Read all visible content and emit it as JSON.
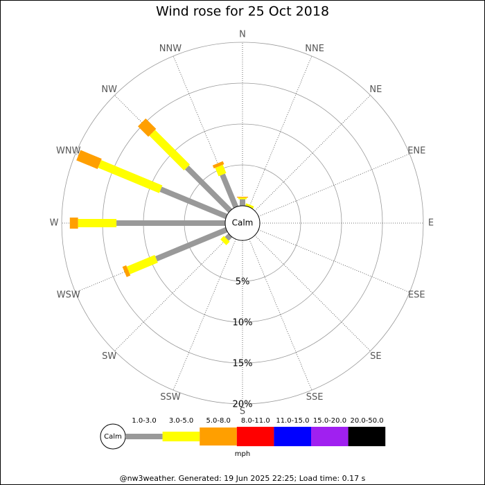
{
  "chart_data": {
    "type": "wind_rose",
    "title": "Wind rose for 25 Oct 2018",
    "directions": [
      "N",
      "NNE",
      "NE",
      "ENE",
      "E",
      "ESE",
      "SE",
      "SSE",
      "S",
      "SSW",
      "SW",
      "WSW",
      "W",
      "WNW",
      "NW",
      "NNW"
    ],
    "series": [
      {
        "name": "1.0-3.0",
        "color": "#999999",
        "values": [
          0.8,
          0,
          0,
          0,
          0,
          0,
          0,
          0,
          0,
          0,
          0.6,
          9.3,
          13.3,
          8.7,
          7.5,
          4.3
        ]
      },
      {
        "name": "3.0-5.0",
        "color": "#ffff00",
        "values": [
          0.2,
          0.3,
          0,
          0,
          0,
          0,
          0,
          0,
          0,
          0,
          0.6,
          3.7,
          4.7,
          8.1,
          6.0,
          1.1
        ]
      },
      {
        "name": "5.0-8.0",
        "color": "#ff9f00",
        "values": [
          0.1,
          0,
          0,
          0,
          0,
          0,
          0,
          0,
          0,
          0,
          0,
          0.5,
          1.0,
          2.8,
          1.8,
          0.4
        ]
      },
      {
        "name": "8.0-11.0",
        "color": "#ff0000",
        "values": [
          0,
          0,
          0,
          0,
          0,
          0,
          0,
          0,
          0,
          0,
          0,
          0,
          0,
          0,
          0,
          0
        ]
      },
      {
        "name": "11.0-15.0",
        "color": "#0000ff",
        "values": [
          0,
          0,
          0,
          0,
          0,
          0,
          0,
          0,
          0,
          0,
          0,
          0,
          0,
          0,
          0,
          0
        ]
      },
      {
        "name": "15.0-20.0",
        "color": "#a020f0",
        "values": [
          0,
          0,
          0,
          0,
          0,
          0,
          0,
          0,
          0,
          0,
          0,
          0,
          0,
          0,
          0,
          0
        ]
      },
      {
        "name": "20.0-50.0",
        "color": "#000000",
        "values": [
          0,
          0,
          0,
          0,
          0,
          0,
          0,
          0,
          0,
          0,
          0,
          0,
          0,
          0,
          0,
          0
        ]
      }
    ],
    "rlim": [
      0,
      20
    ],
    "rticks": [
      {
        "value": 5,
        "label": "5%"
      },
      {
        "value": 10,
        "label": "10%"
      },
      {
        "value": 15,
        "label": "15%"
      },
      {
        "value": 20,
        "label": "20%"
      }
    ],
    "calm_label": "Calm",
    "unit": "mph"
  },
  "footer": "@nw3weather. Generated: 19 Jun 2025 22:25; Load time: 0.17 s"
}
